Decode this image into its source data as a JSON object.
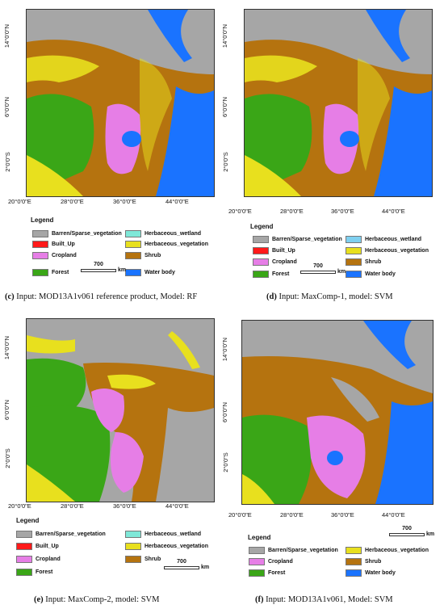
{
  "panels": [
    {
      "id": "c",
      "ylabels": [
        "14°0'0\"N",
        "6°0'0\"N",
        "2°0'0\"S"
      ],
      "xlabels": [
        "20°0'0\"E",
        "28°0'0\"E",
        "36°0'0\"E",
        "44°0'0\"E"
      ],
      "legend_title": "Legend",
      "legend": [
        {
          "label": "Barren/Sparse_vegetation",
          "color": "#a6a6a6"
        },
        {
          "label": "Herbaceous_wetland",
          "color": "#7fe8d8"
        },
        {
          "label": "Built_Up",
          "color": "#ff1a1a"
        },
        {
          "label": "Herbaceous_vegetation",
          "color": "#e8e01e"
        },
        {
          "label": "Cropland",
          "color": "#e67ee6"
        },
        {
          "label": "Shrub",
          "color": "#b5730f"
        },
        {
          "label": "Forest",
          "color": "#3aa617"
        },
        {
          "label": "Water body",
          "color": "#1a73ff"
        }
      ],
      "scale_value": "700",
      "scale_unit": "km",
      "caption_letter": "(c)",
      "caption_text": " Input: MOD13A1v061 reference product, Model: RF"
    },
    {
      "id": "d",
      "ylabels": [
        "14°0'0\"N",
        "6°0'0\"N",
        "2°0'0\"S"
      ],
      "xlabels": [
        "20°0'0\"E",
        "28°0'0\"E",
        "36°0'0\"E",
        "44°0'0\"E"
      ],
      "legend_title": "Legend",
      "legend": [
        {
          "label": "Barren/Sparse_vegetation",
          "color": "#a6a6a6"
        },
        {
          "label": "Herbaceous_wetland",
          "color": "#7fd0f0"
        },
        {
          "label": "Built_Up",
          "color": "#ff1a1a"
        },
        {
          "label": "Herbaceous_vegetation",
          "color": "#e8e01e"
        },
        {
          "label": "Cropland",
          "color": "#e67ee6"
        },
        {
          "label": "Shrub",
          "color": "#b5730f"
        },
        {
          "label": "Forest",
          "color": "#3aa617"
        },
        {
          "label": "Water body",
          "color": "#1a73ff"
        }
      ],
      "scale_value": "700",
      "scale_unit": "km",
      "caption_letter": "(d)",
      "caption_text": " Input: MaxComp-1, model: SVM"
    },
    {
      "id": "e",
      "ylabels": [
        "14°0'0\"N",
        "6°0'0\"N",
        "2°0'0\"S"
      ],
      "xlabels": [
        "20°0'0\"E",
        "28°0'0\"E",
        "36°0'0\"E",
        "44°0'0\"E"
      ],
      "legend_title": "Legend",
      "legend": [
        {
          "label": "Barren/Sparse_vegetation",
          "color": "#a6a6a6"
        },
        {
          "label": "Herbaceous_wetland",
          "color": "#7fe8d8"
        },
        {
          "label": "Built_Up",
          "color": "#ff1a1a"
        },
        {
          "label": "Herbaceous_vegetation",
          "color": "#e8e01e"
        },
        {
          "label": "Cropland",
          "color": "#e67ee6"
        },
        {
          "label": "Shrub",
          "color": "#b5730f"
        },
        {
          "label": "Forest",
          "color": "#3aa617"
        }
      ],
      "scale_value": "700",
      "scale_unit": "km",
      "caption_letter": "(e)",
      "caption_text": " Input: MaxComp-2, model: SVM"
    },
    {
      "id": "f",
      "ylabels": [
        "14°0'0\"N",
        "6°0'0\"N",
        "2°0'0\"S"
      ],
      "xlabels": [
        "20°0'0\"E",
        "28°0'0\"E",
        "36°0'0\"E",
        "44°0'0\"E"
      ],
      "legend_title": "Legend",
      "legend": [
        {
          "label": "Barren/Sparse_vegetation",
          "color": "#a6a6a6"
        },
        {
          "label": "Herbaceous_vegetation",
          "color": "#e8e01e"
        },
        {
          "label": "Cropland",
          "color": "#e67ee6"
        },
        {
          "label": "Shrub",
          "color": "#b5730f"
        },
        {
          "label": "Forest",
          "color": "#3aa617"
        },
        {
          "label": "Water body",
          "color": "#1a73ff"
        }
      ],
      "scale_value": "700",
      "scale_unit": "km",
      "caption_letter": "(f)",
      "caption_text": " Input: MOD13A1v061, Model: SVM"
    }
  ]
}
